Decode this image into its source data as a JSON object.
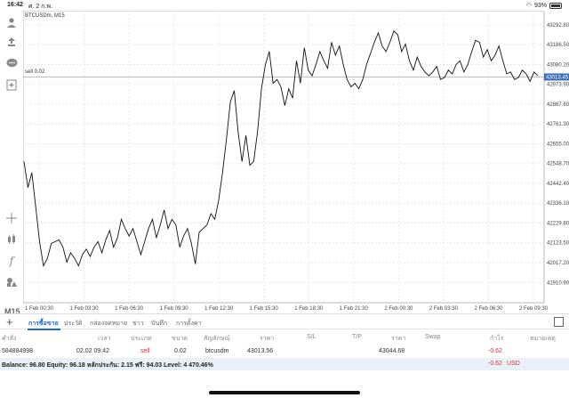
{
  "status_bar": {
    "time": "16:42",
    "date": "ศ. 2 ก.พ.",
    "battery": "93%"
  },
  "chart": {
    "symbol": "BTCUSDm, M15",
    "position_label": "sell 0.02",
    "current_price": "43013.45"
  },
  "chart_data": {
    "type": "line",
    "y_ticks": [
      "43292.80",
      "43186.50",
      "43080.20",
      "42973.90",
      "42867.60",
      "42761.30",
      "42655.00",
      "42548.70",
      "42442.40",
      "42336.10",
      "42229.80",
      "42123.50",
      "42017.20",
      "41910.90"
    ],
    "x_ticks": [
      "1 Feb 00:30",
      "1 Feb 03:30",
      "1 Feb 06:30",
      "1 Feb 09:30",
      "1 Feb 12:30",
      "1 Feb 15:30",
      "1 Feb 18:30",
      "1 Feb 21:30",
      "2 Feb 00:30",
      "2 Feb 03:30",
      "2 Feb 06:30",
      "2 Feb 09:30"
    ],
    "ylim": [
      41850,
      43350
    ],
    "position_price": 43013.45,
    "values": [
      42560,
      42420,
      42500,
      42320,
      42130,
      42000,
      42040,
      42120,
      42130,
      42140,
      42100,
      42020,
      42070,
      42040,
      42000,
      42060,
      42090,
      42050,
      42100,
      42130,
      42070,
      42140,
      42190,
      42100,
      42150,
      42250,
      42200,
      42160,
      42200,
      42130,
      42060,
      42130,
      42200,
      42250,
      42150,
      42220,
      42300,
      42200,
      42250,
      42220,
      42100,
      42160,
      42200,
      42120,
      42010,
      42180,
      42200,
      42220,
      42280,
      42250,
      42350,
      42500,
      42680,
      42880,
      42940,
      42720,
      42560,
      42700,
      42540,
      42560,
      42720,
      42950,
      43080,
      43150,
      42980,
      43000,
      42960,
      42860,
      42950,
      42900,
      43100,
      42980,
      43170,
      43050,
      43020,
      43080,
      43150,
      43100,
      43060,
      43200,
      43130,
      43180,
      43080,
      43000,
      42960,
      42980,
      42950,
      43000,
      43080,
      43140,
      43200,
      43250,
      43180,
      43150,
      43200,
      43260,
      43240,
      43150,
      43190,
      43100,
      43050,
      43120,
      43070,
      43040,
      43020,
      43040,
      43070,
      43000,
      43010,
      43050,
      43030,
      43080,
      43100,
      43040,
      43080,
      43150,
      43210,
      43200,
      43120,
      43160,
      43100,
      43130,
      43180,
      43100,
      43030,
      43040,
      43000,
      43010,
      43050,
      43030,
      42990,
      43040,
      43020
    ]
  },
  "toolbar": {
    "timeframe": "M15"
  },
  "tabs": [
    {
      "label": "การซื้อขาย",
      "active": true
    },
    {
      "label": "ประวัติ"
    },
    {
      "label": "กล่องจดหมาย"
    },
    {
      "label": "ข่าว"
    },
    {
      "label": "บันทึก"
    },
    {
      "label": "การตั้งค่า"
    }
  ],
  "table": {
    "headers": [
      "คำสั่ง",
      "เวลา",
      "ประเภท",
      "ขนาด",
      "สัญลักษณ์",
      "ราคา",
      "S/L",
      "T/P",
      "ราคา",
      "Swap",
      "กำไร",
      "หมายเหตุ"
    ],
    "row": {
      "order": "584884998",
      "time": "02.02 09:42",
      "type": "sell",
      "volume": "0.02",
      "symbol": "btcusdm",
      "open_price": "43013.56",
      "current_price": "43044.68",
      "profit": "-0.62"
    }
  },
  "balance": {
    "text": "Balance: 96.80 Equity: 96.18 หลักประกัน: 2.15 ฟรี: 94.03 Level: 4 470.46%",
    "profit": "-0.62",
    "currency": "USD"
  },
  "colors": {
    "accent": "#1a6bd1",
    "loss": "#d9302c",
    "line": "#111111",
    "price_tag": "#3b6fb6"
  }
}
